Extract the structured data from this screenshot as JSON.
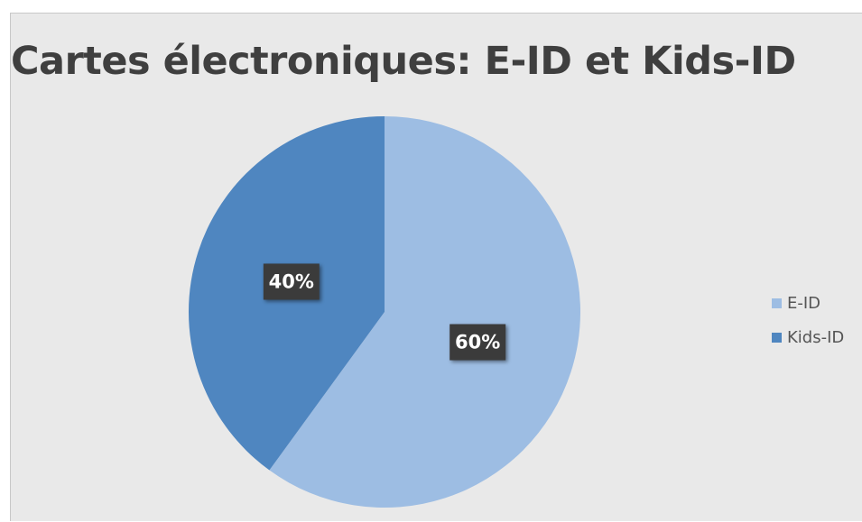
{
  "chart_data": {
    "type": "pie",
    "title": "Cartes électroniques: E-ID et Kids-ID",
    "categories": [
      "E-ID",
      "Kids-ID"
    ],
    "values": [
      60,
      40
    ],
    "data_labels": [
      "60%",
      "40%"
    ],
    "colors": [
      "#9dbde3",
      "#4f86c0"
    ],
    "legend_position": "right"
  }
}
